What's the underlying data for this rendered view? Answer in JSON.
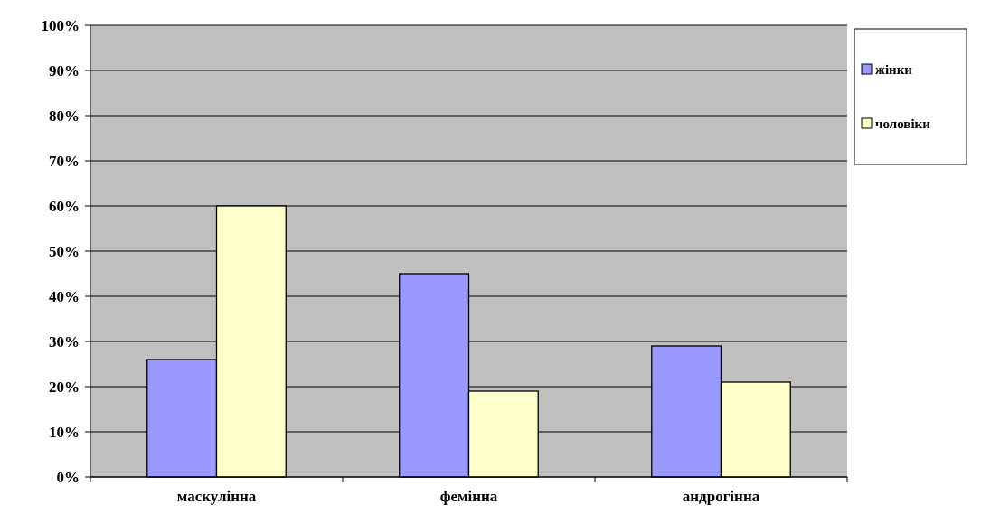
{
  "chart_data": {
    "type": "bar",
    "categories": [
      "маскулінна",
      "фемінна",
      "андрогінна"
    ],
    "series": [
      {
        "name": "жінки",
        "color": "#9999ff",
        "values": [
          26,
          45,
          29
        ]
      },
      {
        "name": "чоловіки",
        "color": "#ffffcc",
        "values": [
          60,
          19,
          21
        ]
      }
    ],
    "ylim": [
      0,
      100
    ],
    "yticks": [
      {
        "value": 0,
        "label": "0%"
      },
      {
        "value": 10,
        "label": "10%"
      },
      {
        "value": 20,
        "label": "20%"
      },
      {
        "value": 30,
        "label": "30%"
      },
      {
        "value": 40,
        "label": "40%"
      },
      {
        "value": 50,
        "label": "50%"
      },
      {
        "value": 60,
        "label": "60%"
      },
      {
        "value": 70,
        "label": "70%"
      },
      {
        "value": 80,
        "label": "80%"
      },
      {
        "value": 90,
        "label": "90%"
      },
      {
        "value": 100,
        "label": "100%"
      }
    ],
    "grid": "y",
    "legend": "right"
  }
}
